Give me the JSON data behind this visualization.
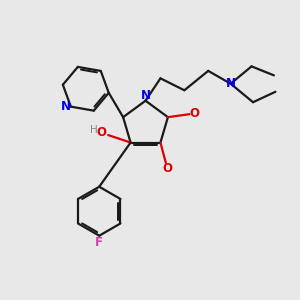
{
  "bg_color": "#e8e8e8",
  "bond_color": "#1a1a1a",
  "N_color": "#0000ee",
  "O_color": "#dd0000",
  "F_color": "#cc44aa",
  "H_color": "#888888",
  "figsize": [
    3.0,
    3.0
  ],
  "dpi": 100,
  "lw": 1.6,
  "xlim": [
    0,
    10
  ],
  "ylim": [
    0,
    10
  ]
}
